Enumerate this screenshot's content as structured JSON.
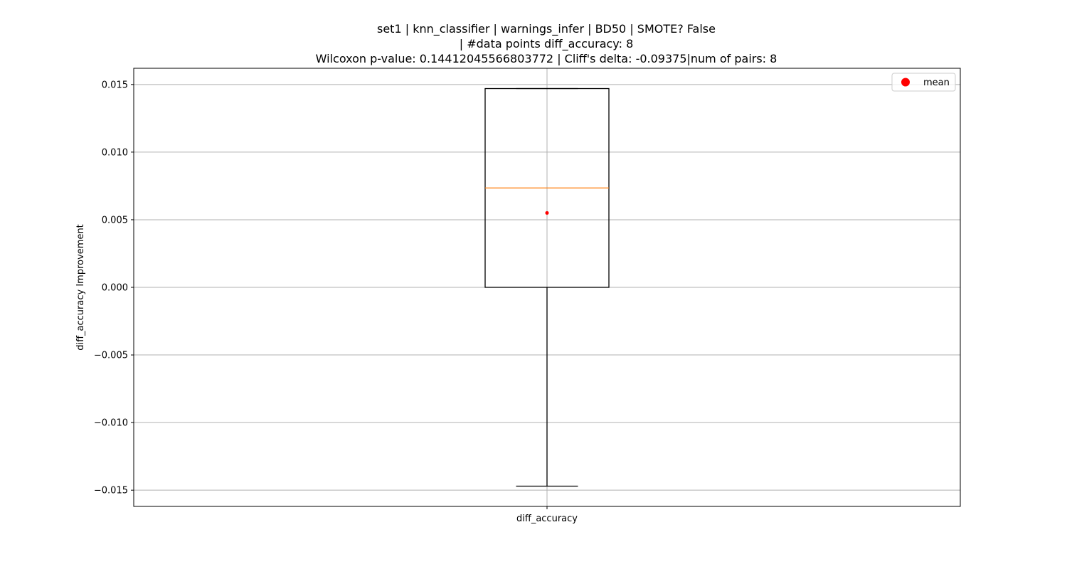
{
  "chart_data": {
    "type": "box",
    "title_lines": [
      "set1 | knn_classifier | warnings_infer | BD50 | SMOTE? False",
      "| #data points diff_accuracy: 8",
      "Wilcoxon p-value: 0.14412045566803772 | Cliff's delta: -0.09375|num of pairs: 8"
    ],
    "xlabel": "",
    "ylabel": "diff_accuracy Improvement",
    "categories": [
      "diff_accuracy"
    ],
    "boxes": [
      {
        "category": "diff_accuracy",
        "whisker_low": -0.0147,
        "q1": 0.0,
        "median": 0.00735,
        "q3": 0.0147,
        "whisker_high": 0.0147,
        "mean": 0.0055
      }
    ],
    "ylim": [
      -0.0162,
      0.0162
    ],
    "yticks": [
      -0.015,
      -0.01,
      -0.005,
      0.0,
      0.005,
      0.01,
      0.015
    ],
    "ytick_labels": [
      "−0.015",
      "−0.010",
      "−0.005",
      "0.000",
      "0.005",
      "0.010",
      "0.015"
    ],
    "grid": true,
    "legend": {
      "placement": "top-right",
      "entries": [
        {
          "label": "mean",
          "marker": "circle",
          "color": "#ff0000"
        }
      ]
    },
    "colors": {
      "box": "#000000",
      "median": "#ff7f0e",
      "mean": "#ff0000",
      "grid": "#b0b0b0"
    }
  }
}
